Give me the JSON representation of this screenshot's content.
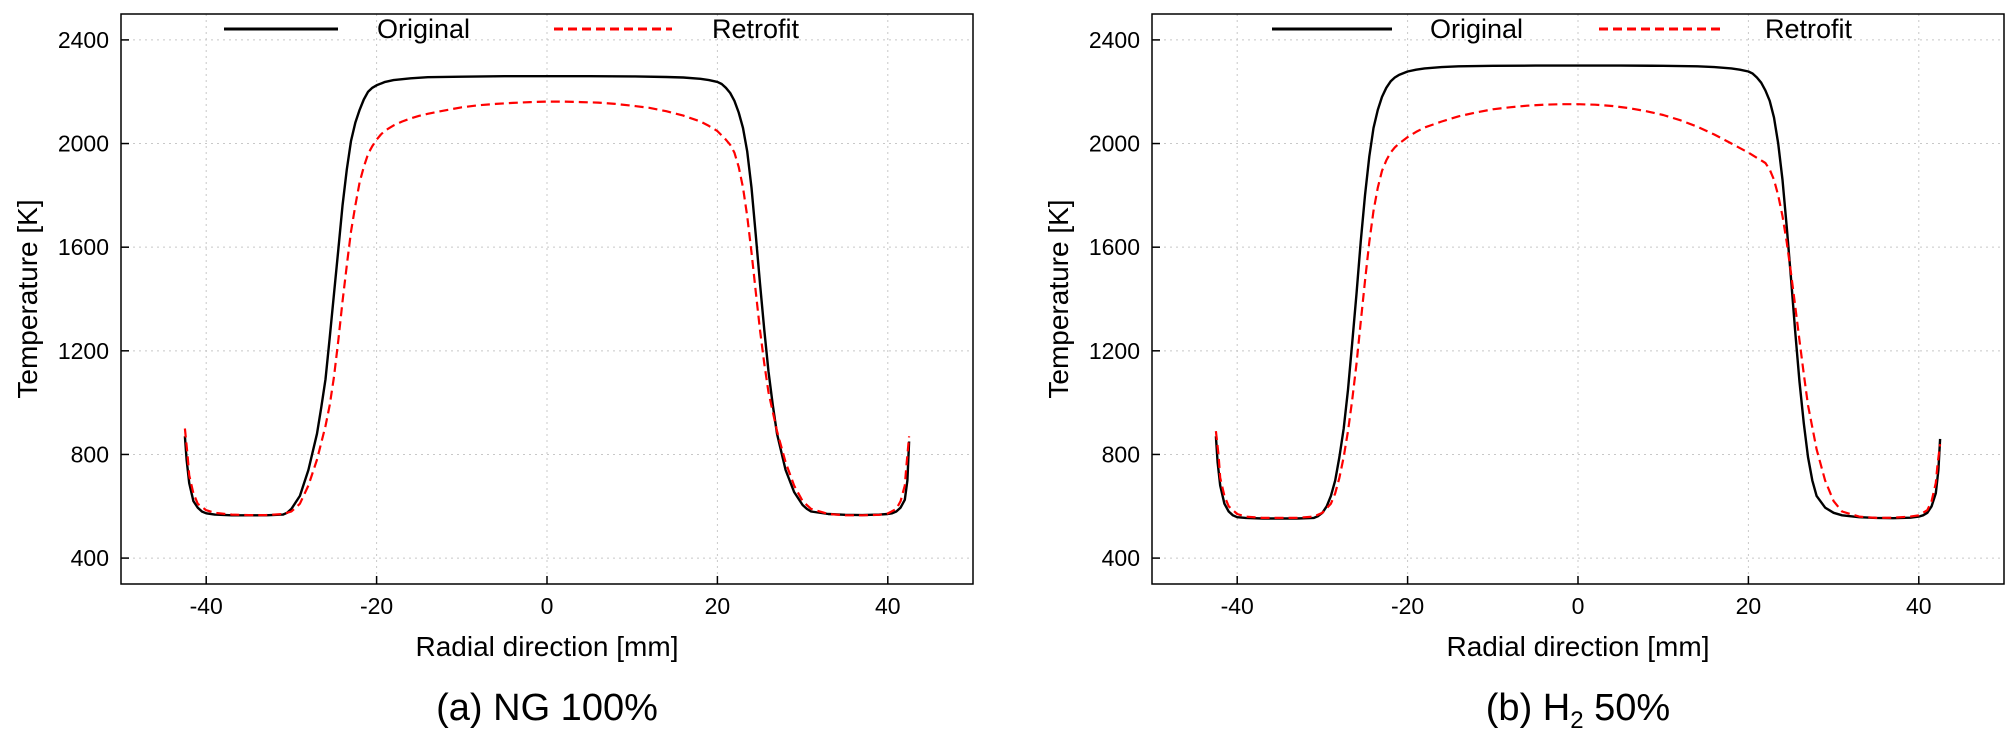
{
  "colors": {
    "original": "#000000",
    "retrofit": "#ff0000",
    "grid": "#c8c8c8"
  },
  "chart_data": [
    {
      "type": "line",
      "caption": "(a) NG 100%",
      "caption_parts": {
        "prefix": "(a) NG 100%",
        "sub": "",
        "suffix": ""
      },
      "xlabel": "Radial direction [mm]",
      "ylabel": "Temperature [K]",
      "xlim": [
        -50,
        50
      ],
      "ylim": [
        300,
        2500
      ],
      "xticks": [
        -40,
        -20,
        0,
        20,
        40
      ],
      "yticks": [
        400,
        800,
        1200,
        1600,
        2000,
        2400
      ],
      "grid": true,
      "legend_position": "top",
      "series": [
        {
          "name": "Original",
          "style": "solid",
          "color": "#000000",
          "x": [
            -42.5,
            -42.3,
            -42,
            -41.5,
            -41,
            -40.5,
            -40,
            -39,
            -37,
            -35,
            -33,
            -31,
            -30.5,
            -30,
            -29,
            -28,
            -27,
            -26.5,
            -26,
            -25.5,
            -25,
            -24.5,
            -24,
            -23.5,
            -23,
            -22.5,
            -22,
            -21.5,
            -21,
            -20.5,
            -20,
            -19,
            -18,
            -16,
            -14,
            -10,
            -5,
            0,
            5,
            10,
            14,
            16,
            18,
            19,
            20,
            20.5,
            21,
            21.5,
            22,
            22.5,
            23,
            23.5,
            24,
            24.5,
            25,
            25.5,
            26,
            26.5,
            27,
            28,
            29,
            30,
            30.5,
            31,
            33,
            35,
            37,
            39,
            40,
            40.5,
            41,
            41.5,
            42,
            42.3,
            42.5
          ],
          "y": [
            870,
            780,
            690,
            620,
            595,
            580,
            573,
            568,
            565,
            565,
            565,
            568,
            575,
            590,
            640,
            740,
            880,
            980,
            1090,
            1250,
            1420,
            1590,
            1760,
            1900,
            2010,
            2080,
            2130,
            2170,
            2200,
            2215,
            2225,
            2238,
            2245,
            2252,
            2256,
            2258,
            2260,
            2260,
            2260,
            2259,
            2257,
            2255,
            2250,
            2245,
            2238,
            2230,
            2215,
            2195,
            2165,
            2120,
            2060,
            1970,
            1830,
            1650,
            1460,
            1280,
            1120,
            990,
            880,
            740,
            655,
            605,
            590,
            580,
            570,
            567,
            566,
            568,
            570,
            573,
            580,
            595,
            625,
            700,
            850
          ]
        },
        {
          "name": "Retrofit",
          "style": "dashed",
          "color": "#ff0000",
          "x": [
            -42.5,
            -42.2,
            -42,
            -41.5,
            -41,
            -40,
            -39,
            -37,
            -35,
            -33,
            -31,
            -30,
            -29,
            -28,
            -27,
            -26,
            -25.5,
            -25,
            -24.5,
            -24,
            -23.5,
            -23,
            -22.5,
            -22,
            -21.5,
            -21,
            -20.5,
            -20,
            -19.5,
            -19,
            -18,
            -17,
            -16,
            -15,
            -14,
            -12,
            -10,
            -8,
            -6,
            -4,
            -2,
            0,
            2,
            4,
            6,
            8,
            10,
            12,
            14,
            16,
            18,
            19,
            20,
            21,
            21.5,
            22,
            22.5,
            23,
            23.5,
            24,
            24.5,
            25,
            25.5,
            26,
            27,
            28,
            29,
            30,
            31,
            33,
            35,
            37,
            39,
            40,
            41,
            41.5,
            42,
            42.2,
            42.5
          ],
          "y": [
            900,
            800,
            720,
            650,
            610,
            585,
            575,
            568,
            566,
            566,
            570,
            580,
            610,
            680,
            780,
            910,
            990,
            1100,
            1240,
            1390,
            1530,
            1660,
            1760,
            1850,
            1910,
            1960,
            1990,
            2015,
            2035,
            2050,
            2070,
            2085,
            2097,
            2107,
            2115,
            2128,
            2140,
            2148,
            2153,
            2157,
            2160,
            2162,
            2162,
            2160,
            2158,
            2153,
            2146,
            2138,
            2125,
            2108,
            2085,
            2068,
            2048,
            2015,
            1995,
            1965,
            1910,
            1830,
            1720,
            1580,
            1430,
            1280,
            1150,
            1040,
            890,
            770,
            680,
            620,
            590,
            570,
            565,
            565,
            567,
            572,
            590,
            620,
            680,
            760,
            870
          ]
        }
      ]
    },
    {
      "type": "line",
      "caption": "(b) H2 50%",
      "caption_parts": {
        "prefix": "(b) H",
        "sub": "2",
        "suffix": " 50%"
      },
      "xlabel": "Radial direction [mm]",
      "ylabel": "Temperature [K]",
      "xlim": [
        -50,
        50
      ],
      "ylim": [
        300,
        2500
      ],
      "xticks": [
        -40,
        -20,
        0,
        20,
        40
      ],
      "yticks": [
        400,
        800,
        1200,
        1600,
        2000,
        2400
      ],
      "grid": true,
      "legend_position": "top",
      "series": [
        {
          "name": "Original",
          "style": "solid",
          "color": "#000000",
          "x": [
            -42.5,
            -42.3,
            -42,
            -41.5,
            -41,
            -40.5,
            -40,
            -39,
            -37,
            -35,
            -33,
            -31,
            -30.5,
            -30,
            -29.5,
            -29,
            -28.5,
            -28,
            -27.5,
            -27,
            -26.5,
            -26,
            -25.5,
            -25,
            -24.5,
            -24,
            -23.5,
            -23,
            -22.5,
            -22,
            -21.5,
            -21,
            -20,
            -19,
            -18,
            -16,
            -14,
            -10,
            -5,
            0,
            5,
            10,
            14,
            16,
            18,
            19,
            20,
            20.5,
            21,
            21.5,
            22,
            22.5,
            23,
            23.5,
            24,
            24.5,
            25,
            25.5,
            26,
            26.5,
            27,
            27.5,
            28,
            29,
            30,
            31,
            33,
            35,
            37,
            39,
            40,
            40.5,
            41,
            41.5,
            42,
            42.3,
            42.5
          ],
          "y": [
            870,
            770,
            680,
            610,
            580,
            565,
            558,
            555,
            553,
            553,
            553,
            555,
            562,
            575,
            600,
            640,
            700,
            790,
            900,
            1050,
            1230,
            1420,
            1620,
            1800,
            1950,
            2060,
            2130,
            2180,
            2215,
            2240,
            2255,
            2265,
            2278,
            2285,
            2290,
            2295,
            2298,
            2300,
            2301,
            2301,
            2301,
            2300,
            2298,
            2295,
            2290,
            2285,
            2278,
            2270,
            2255,
            2235,
            2205,
            2165,
            2100,
            2000,
            1860,
            1680,
            1480,
            1270,
            1080,
            920,
            790,
            700,
            640,
            595,
            575,
            565,
            558,
            555,
            554,
            556,
            560,
            565,
            575,
            600,
            650,
            740,
            860
          ]
        },
        {
          "name": "Retrofit",
          "style": "dashed",
          "color": "#ff0000",
          "x": [
            -42.5,
            -42.2,
            -42,
            -41.5,
            -41,
            -40,
            -39,
            -37,
            -35,
            -33,
            -31,
            -30,
            -29,
            -28.5,
            -28,
            -27.5,
            -27,
            -26.5,
            -26,
            -25.5,
            -25,
            -24.5,
            -24,
            -23.5,
            -23,
            -22.5,
            -22,
            -21.5,
            -21,
            -20.5,
            -20,
            -19,
            -18,
            -16,
            -14,
            -12,
            -10,
            -8,
            -6,
            -4,
            -2,
            0,
            2,
            4,
            6,
            8,
            10,
            12,
            14,
            16,
            18,
            20,
            21,
            22,
            22.5,
            23,
            23.5,
            24,
            24.5,
            25,
            25.5,
            26,
            26.5,
            27,
            28,
            29,
            30,
            31,
            33,
            35,
            37,
            39,
            40,
            41,
            41.5,
            42,
            42.2,
            42.5
          ],
          "y": [
            890,
            800,
            710,
            640,
            600,
            570,
            560,
            555,
            555,
            555,
            560,
            575,
            610,
            650,
            710,
            790,
            890,
            1010,
            1150,
            1310,
            1470,
            1620,
            1740,
            1830,
            1895,
            1935,
            1965,
            1985,
            2000,
            2012,
            2025,
            2045,
            2062,
            2085,
            2105,
            2120,
            2132,
            2140,
            2146,
            2150,
            2152,
            2152,
            2150,
            2145,
            2137,
            2125,
            2110,
            2090,
            2065,
            2035,
            2000,
            1965,
            1945,
            1925,
            1900,
            1860,
            1800,
            1720,
            1620,
            1500,
            1370,
            1240,
            1110,
            990,
            820,
            700,
            620,
            580,
            560,
            555,
            556,
            560,
            565,
            585,
            620,
            690,
            760,
            840
          ]
        }
      ]
    }
  ]
}
